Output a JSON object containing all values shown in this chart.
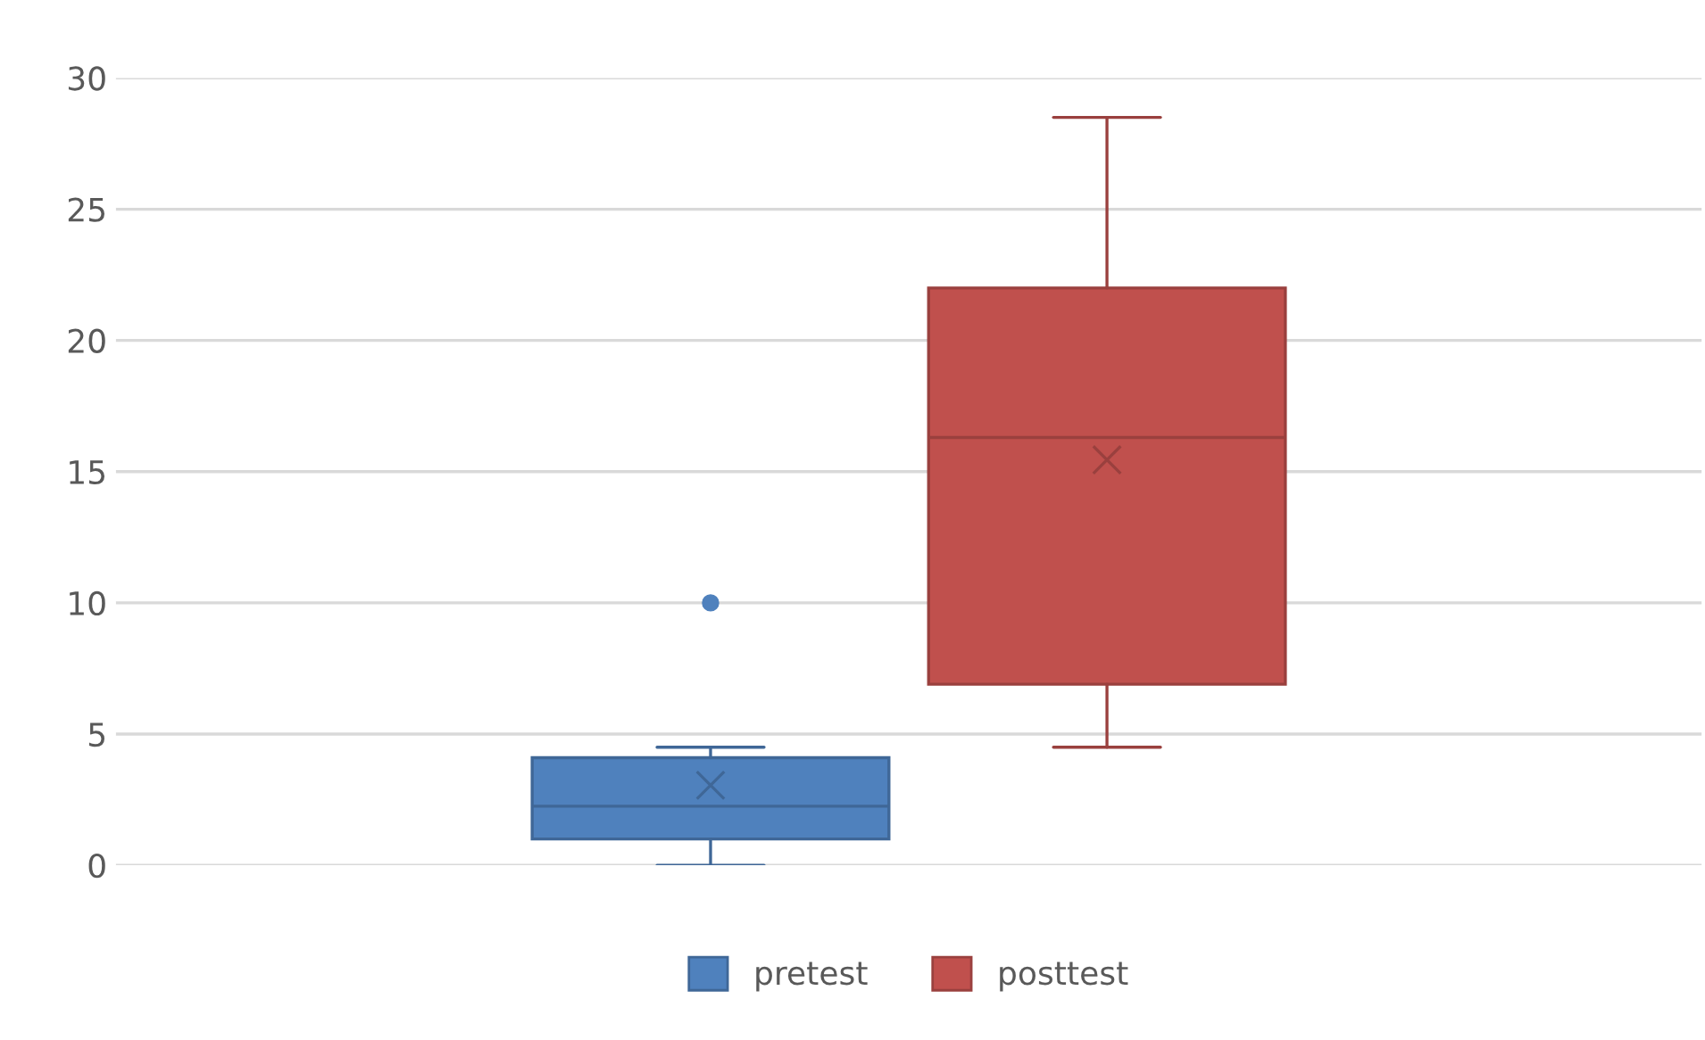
{
  "chart_data": {
    "type": "box",
    "categories": [
      null
    ],
    "series": [
      {
        "name": "pretest",
        "color": "#4f81bd",
        "boxes": [
          {
            "low": 0,
            "q1": 1,
            "median": 2.25,
            "q3": 4.1,
            "high": 4.5,
            "mean": 3.05,
            "outliers": [
              10
            ]
          }
        ]
      },
      {
        "name": "posttest",
        "color": "#c0504d",
        "boxes": [
          {
            "low": 4.5,
            "q1": 6.9,
            "median": 16.3,
            "q3": 22,
            "high": 28.5,
            "mean": 15.45
          }
        ]
      }
    ],
    "ylim": [
      0,
      30
    ],
    "yticks": [
      0,
      5,
      10,
      15,
      20,
      25,
      30
    ],
    "grid": "y",
    "legend": "bottom",
    "marker": "cross",
    "tick_labels": "y"
  }
}
